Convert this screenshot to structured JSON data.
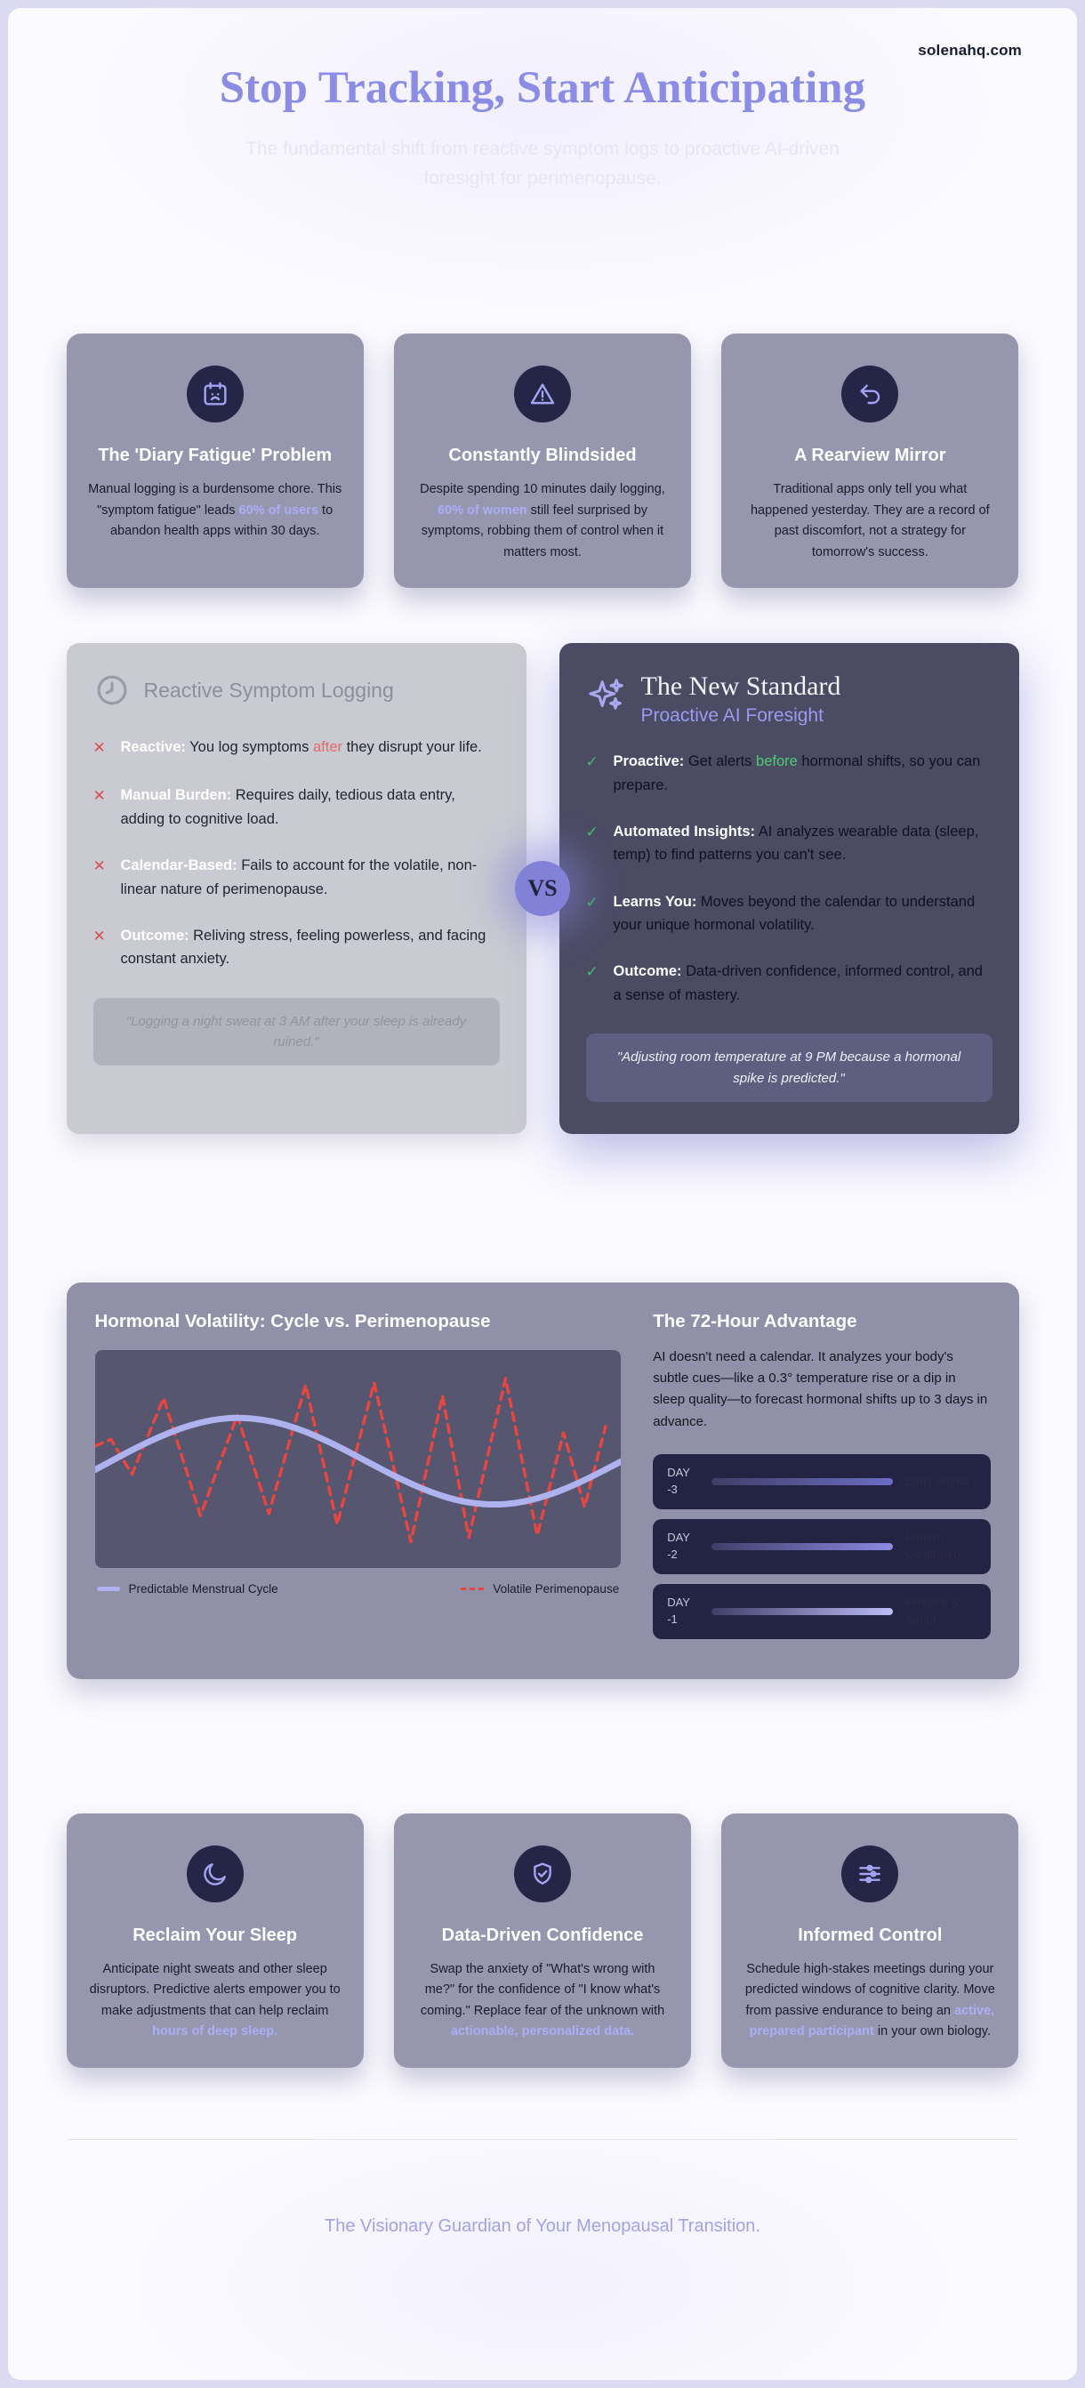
{
  "header": {
    "site_domain": "solenahq.com",
    "title": "Stop Tracking, Start Anticipating",
    "subtitle": "The fundamental shift from reactive symptom logs to proactive AI-driven foresight for perimenopause."
  },
  "colors": {
    "accent_purple": "#8a8ce5",
    "highlight_periwinkle": "#abaef7",
    "card_bg": "#9696ae",
    "icon_circle_bg": "#252547",
    "old_panel_bg": "#cacad2",
    "new_panel_bg": "#4b4b64",
    "negative_red": "#d94f4f",
    "positive_green": "#3fbd70",
    "timeline_row_bg": "#232343"
  },
  "problem_cards": [
    {
      "icon": "calendar-sad-icon",
      "title": "The 'Diary Fatigue' Problem",
      "body": [
        {
          "t": "Manual logging is a burdensome chore. This \"symptom fatigue\" leads "
        },
        {
          "t": "60% of users",
          "c": "hl"
        },
        {
          "t": " to abandon health apps within 30 days."
        }
      ]
    },
    {
      "icon": "alert-triangle-icon",
      "title": "Constantly Blindsided",
      "body": [
        {
          "t": "Despite spending 10 minutes daily logging, "
        },
        {
          "t": "60% of women",
          "c": "hl"
        },
        {
          "t": " still feel surprised by symptoms, robbing them of control when it matters most."
        }
      ]
    },
    {
      "icon": "undo-arrow-icon",
      "title": "A Rearview Mirror",
      "body": [
        {
          "t": "Traditional apps only tell you what happened yesterday. They are a record of past discomfort, not a strategy for tomorrow's success."
        }
      ]
    }
  ],
  "comparison": {
    "vs_label": "VS",
    "old": {
      "icon": "clock-icon",
      "title": "Reactive Symptom Logging",
      "items": [
        {
          "label": "Reactive:",
          "body": [
            {
              "t": "You log symptoms "
            },
            {
              "t": "after",
              "c": "red"
            },
            {
              "t": " they disrupt your life."
            }
          ]
        },
        {
          "label": "Manual Burden:",
          "body": [
            {
              "t": "Requires daily, tedious data entry, adding to cognitive load."
            }
          ]
        },
        {
          "label": "Calendar-Based:",
          "body": [
            {
              "t": "Fails to account for the volatile, non-linear nature of perimenopause."
            }
          ]
        },
        {
          "label": "Outcome:",
          "body": [
            {
              "t": "Reliving stress, feeling powerless, and facing constant anxiety."
            }
          ]
        }
      ],
      "quote": "\"Logging a night sweat at 3 AM after your sleep is already ruined.\""
    },
    "new": {
      "icon": "sparkles-icon",
      "title": "The New Standard",
      "subtitle": "Proactive AI Foresight",
      "items": [
        {
          "label": "Proactive:",
          "body": [
            {
              "t": "Get alerts "
            },
            {
              "t": "before",
              "c": "green"
            },
            {
              "t": " hormonal shifts, so you can prepare."
            }
          ]
        },
        {
          "label": "Automated Insights:",
          "body": [
            {
              "t": "AI analyzes wearable data (sleep, temp) to find patterns you can't see."
            }
          ]
        },
        {
          "label": "Learns You:",
          "body": [
            {
              "t": "Moves beyond the calendar to understand your unique hormonal volatility."
            }
          ]
        },
        {
          "label": "Outcome:",
          "body": [
            {
              "t": "Data-driven confidence, informed control, and a sense of mastery."
            }
          ]
        }
      ],
      "quote": "\"Adjusting room temperature at 9 PM because a hormonal spike is predicted.\""
    }
  },
  "chart_section": {
    "chart_title": "Hormonal Volatility: Cycle vs. Perimenopause",
    "advantage_title": "The 72-Hour Advantage",
    "advantage_body": "AI doesn't need a calendar. It analyzes your body's subtle cues—like a 0.3° temperature rise or a dip in sleep quality—to forecast hormonal shifts up to 3 days in advance.",
    "timeline": [
      {
        "day": "DAY",
        "num": "-3",
        "status": "Early Signal",
        "bar_to": "#6c6cc4"
      },
      {
        "day": "DAY",
        "num": "-2",
        "status": "Pattern Confirmed",
        "bar_to": "#8a8ae2"
      },
      {
        "day": "DAY",
        "num": "-1",
        "status": "Prepare & Adapt",
        "bar_to": "#bdbdf8"
      }
    ]
  },
  "chart_data": {
    "type": "line",
    "title": "Hormonal Volatility: Cycle vs. Perimenopause",
    "x_range": [
      0,
      100
    ],
    "y_range": [
      0,
      100
    ],
    "grid": false,
    "legend_position": "bottom",
    "series": [
      {
        "name": "Predictable Menstrual Cycle",
        "color": "#aeb2ee",
        "style": "solid",
        "points": [
          [
            0,
            54.9
          ],
          [
            4,
            49.7
          ],
          [
            8,
            44.6
          ],
          [
            12,
            40.0
          ],
          [
            16,
            36.1
          ],
          [
            20,
            33.2
          ],
          [
            24,
            31.4
          ],
          [
            28,
            31.0
          ],
          [
            32,
            31.9
          ],
          [
            36,
            34.1
          ],
          [
            40,
            37.4
          ],
          [
            44,
            41.6
          ],
          [
            48,
            46.5
          ],
          [
            52,
            51.6
          ],
          [
            56,
            56.7
          ],
          [
            60,
            61.4
          ],
          [
            64,
            65.4
          ],
          [
            68,
            68.5
          ],
          [
            72,
            70.4
          ],
          [
            76,
            71.0
          ],
          [
            80,
            70.3
          ],
          [
            84,
            68.2
          ],
          [
            88,
            65.0
          ],
          [
            92,
            60.9
          ],
          [
            96,
            56.1
          ],
          [
            100,
            51.0
          ]
        ]
      },
      {
        "name": "Volatile Perimenopause",
        "color": "#e8473f",
        "style": "dashed",
        "points": [
          [
            0,
            44
          ],
          [
            3,
            41
          ],
          [
            7,
            57
          ],
          [
            13,
            22
          ],
          [
            20,
            76
          ],
          [
            27,
            30
          ],
          [
            33,
            75
          ],
          [
            40,
            16
          ],
          [
            46,
            80
          ],
          [
            53,
            15
          ],
          [
            60,
            88
          ],
          [
            66,
            21
          ],
          [
            71,
            86
          ],
          [
            78,
            13
          ],
          [
            84,
            85
          ],
          [
            89,
            38
          ],
          [
            93,
            72
          ],
          [
            97,
            35
          ]
        ]
      }
    ]
  },
  "benefit_cards": [
    {
      "icon": "moon-icon",
      "title": "Reclaim Your Sleep",
      "body": [
        {
          "t": "Anticipate night sweats and other sleep disruptors. Predictive alerts empower you to make adjustments that can help reclaim "
        },
        {
          "t": "hours of deep sleep.",
          "c": "hl"
        }
      ]
    },
    {
      "icon": "shield-check-icon",
      "title": "Data-Driven Confidence",
      "body": [
        {
          "t": "Swap the anxiety of \"What's wrong with me?\" for the confidence of \"I know what's coming.\" Replace fear of the unknown with "
        },
        {
          "t": "actionable, personalized data.",
          "c": "hl"
        }
      ]
    },
    {
      "icon": "sliders-icon",
      "title": "Informed Control",
      "body": [
        {
          "t": "Schedule high-stakes meetings during your predicted windows of cognitive clarity. Move from passive endurance to being an "
        },
        {
          "t": "active, prepared participant",
          "c": "hl"
        },
        {
          "t": " in your own biology."
        }
      ]
    }
  ],
  "footer": {
    "tagline": "The Visionary Guardian of Your Menopausal Transition."
  }
}
